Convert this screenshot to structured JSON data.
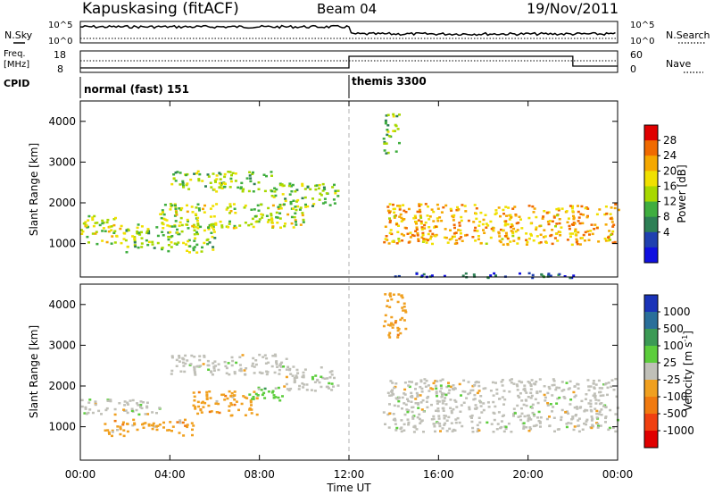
{
  "header": {
    "station": "Kapuskasing (fitACF)",
    "beam": "Beam 04",
    "date": "19/Nov/2011"
  },
  "noise_panel": {
    "left_label": "N.Sky",
    "right_label": "N.Search",
    "left_ticks": [
      "10^5",
      "10^0"
    ],
    "right_ticks": [
      "10^5",
      "10^0"
    ]
  },
  "freq_panel": {
    "left_label_line1": "Freq.",
    "left_label_line2": "[MHz]",
    "left_ticks": [
      "18",
      "8"
    ],
    "right_label": "Nave",
    "right_ticks": [
      "60",
      "0"
    ]
  },
  "cpid_panel": {
    "label": "CPID",
    "modes": [
      {
        "name": "normal (fast) 151",
        "start_hour": 0,
        "end_hour": 12
      },
      {
        "name": "themis 3300",
        "start_hour": 12,
        "end_hour": 24
      }
    ]
  },
  "colorbars": {
    "power": {
      "label": "Power [dB]",
      "ticks": [
        "28",
        "24",
        "20",
        "16",
        "12",
        "8",
        "4"
      ],
      "colors": [
        "#e00000",
        "#f06a00",
        "#f5a800",
        "#f0e000",
        "#a8d800",
        "#3fae3f",
        "#2d7f55",
        "#2040b0",
        "#1010e0"
      ]
    },
    "velocity": {
      "label_main": "Velocity [m s",
      "label_sup": "-1",
      "label_end": "]",
      "ticks": [
        "1000",
        "500",
        "100",
        "25",
        "-25",
        "-100",
        "-500",
        "-1000"
      ],
      "colors": [
        "#1a33b8",
        "#2a6f9a",
        "#3c9a55",
        "#5ccd3c",
        "#c0c0b8",
        "#f0a020",
        "#f07a10",
        "#f04010",
        "#e00000"
      ]
    }
  },
  "x_axis": {
    "label": "Time UT",
    "ticks": [
      "00:00",
      "04:00",
      "08:00",
      "12:00",
      "16:00",
      "20:00",
      "00:00"
    ]
  },
  "chart_data": [
    {
      "type": "heatmap",
      "panel": "power",
      "ylabel": "Slant Range [km]",
      "xlabel": "Time UT",
      "xlim_hours": [
        0,
        24
      ],
      "ylim": [
        180,
        4500
      ],
      "y_ticks": [
        1000,
        2000,
        3000,
        4000
      ],
      "colorbar_label": "Power [dB]",
      "colorbar_range": [
        0,
        30
      ],
      "echo_regions": [
        {
          "t_start": 0.0,
          "t_end": 2.0,
          "range_low": 1000,
          "range_high": 1700,
          "power_db": 16
        },
        {
          "t_start": 2.0,
          "t_end": 6.0,
          "range_low": 800,
          "range_high": 1500,
          "power_db": 14
        },
        {
          "t_start": 3.5,
          "t_end": 10.0,
          "range_low": 1400,
          "range_high": 2000,
          "power_db": 16
        },
        {
          "t_start": 4.0,
          "t_end": 8.5,
          "range_low": 2300,
          "range_high": 2800,
          "power_db": 14
        },
        {
          "t_start": 8.5,
          "t_end": 11.5,
          "range_low": 1900,
          "range_high": 2500,
          "power_db": 14
        },
        {
          "t_start": 13.5,
          "t_end": 14.2,
          "range_low": 3200,
          "range_high": 4200,
          "power_db": 12
        },
        {
          "t_start": 13.5,
          "t_end": 24.0,
          "range_low": 1000,
          "range_high": 2000,
          "power_db": 22
        },
        {
          "t_start": 13.5,
          "t_end": 22.0,
          "range_low": 180,
          "range_high": 300,
          "power_db": 6
        }
      ]
    },
    {
      "type": "heatmap",
      "panel": "velocity",
      "ylabel": "Slant Range [km]",
      "xlabel": "Time UT",
      "xlim_hours": [
        0,
        24
      ],
      "ylim": [
        180,
        4500
      ],
      "y_ticks": [
        1000,
        2000,
        3000,
        4000
      ],
      "colorbar_label": "Velocity [m s-1]",
      "colorbar_range": [
        -1000,
        1000
      ],
      "echo_regions": [
        {
          "t_start": 0.0,
          "t_end": 3.5,
          "range_low": 1300,
          "range_high": 1700,
          "velocity": 0
        },
        {
          "t_start": 1.0,
          "t_end": 5.0,
          "range_low": 800,
          "range_high": 1200,
          "velocity": -100
        },
        {
          "t_start": 4.0,
          "t_end": 9.5,
          "range_low": 2300,
          "range_high": 2800,
          "velocity": 0
        },
        {
          "t_start": 5.0,
          "t_end": 8.0,
          "range_low": 1300,
          "range_high": 1900,
          "velocity": -100
        },
        {
          "t_start": 7.5,
          "t_end": 9.0,
          "range_low": 1600,
          "range_high": 2000,
          "velocity": 100
        },
        {
          "t_start": 9.0,
          "t_end": 11.5,
          "range_low": 1900,
          "range_high": 2500,
          "velocity": 0
        },
        {
          "t_start": 13.5,
          "t_end": 24.0,
          "range_low": 900,
          "range_high": 2200,
          "velocity": 0
        },
        {
          "t_start": 13.5,
          "t_end": 14.5,
          "range_low": 3200,
          "range_high": 4300,
          "velocity": -100
        }
      ]
    }
  ]
}
